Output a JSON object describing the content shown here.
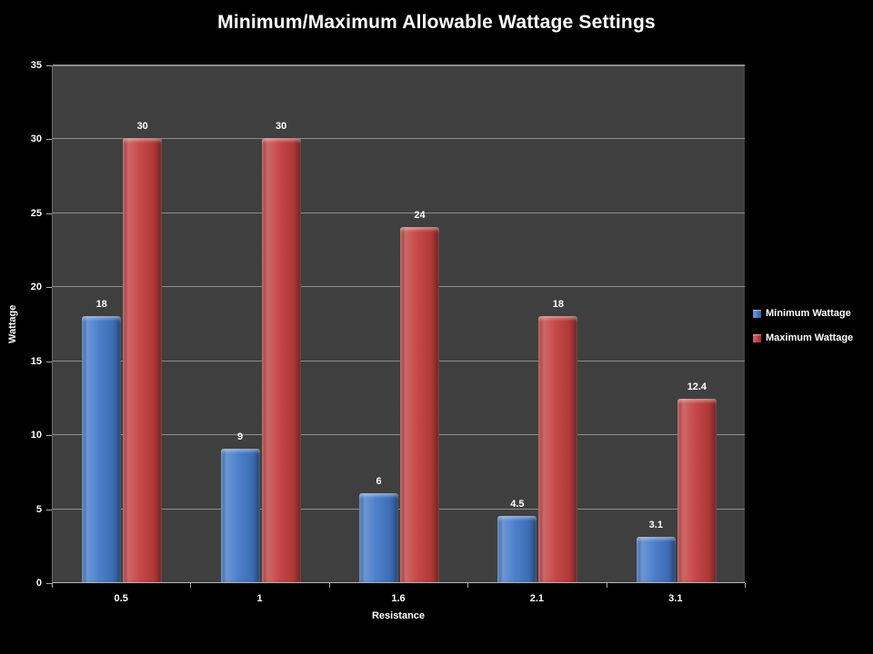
{
  "page": {
    "background_color": "#000000",
    "text_color": "#ffffff"
  },
  "chart_data": {
    "type": "bar",
    "title": "Minimum/Maximum Allowable Wattage Settings",
    "categories": [
      "0.5",
      "1",
      "1.6",
      "2.1",
      "3.1"
    ],
    "series": [
      {
        "name": "Minimum Wattage",
        "color": "#4379c8",
        "values": [
          18,
          9,
          6,
          4.5,
          3.1
        ]
      },
      {
        "name": "Maximum Wattage",
        "color": "#c23e3d",
        "values": [
          30,
          30,
          24,
          18,
          12.4
        ]
      }
    ],
    "xlabel": "Resistance",
    "ylabel": "Wattage",
    "ylim": [
      0,
      35
    ],
    "ytick_step": 5,
    "grid": true,
    "legend_position": "right",
    "plot_background": "#3f3f3f",
    "gridline_color": "#8e8e8e"
  }
}
